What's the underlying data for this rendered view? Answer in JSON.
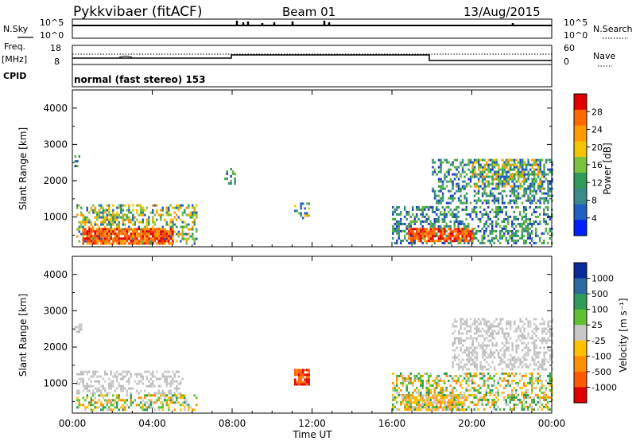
{
  "header": {
    "radar": "Pykkvibaer (fitACF)",
    "beam": "Beam 01",
    "date": "13/Aug/2015"
  },
  "noise_panel": {
    "left_label": "N.Sky",
    "right_label": "N.Search",
    "left_ticks": [
      "10^5",
      "10^0"
    ],
    "right_ticks": [
      "10^5",
      "10^0"
    ]
  },
  "freq_panel": {
    "left_label_top": "Freq.",
    "left_label_unit": "[MHz]",
    "cpid_label": "CPID",
    "right_label": "Nave",
    "left_ticks": [
      "18",
      "8"
    ],
    "right_ticks": [
      "60",
      "0"
    ],
    "cpid_text": "normal (fast stereo) 153"
  },
  "power_colorbar": {
    "label": "Power [dB]",
    "ticks": [
      "28",
      "24",
      "20",
      "16",
      "12",
      "8",
      "4"
    ],
    "colors": [
      "#e00000",
      "#ff6a00",
      "#ff9a00",
      "#f5c400",
      "#7cc242",
      "#2f9a5a",
      "#3a8a8a",
      "#2060c0",
      "#0020ff"
    ]
  },
  "velocity_colorbar": {
    "label": "Velocity [m s⁻¹]",
    "ticks": [
      "1000",
      "500",
      "100",
      "25",
      "-25",
      "-100",
      "-500",
      "-1000"
    ],
    "colors": [
      "#0a2a9a",
      "#2a6aa0",
      "#2f9a5a",
      "#60c030",
      "#c8c8c8",
      "#ffc000",
      "#ff9000",
      "#ff5a00",
      "#e00000"
    ]
  },
  "chart_data": [
    {
      "type": "heatmap",
      "name": "power",
      "ylabel": "Slant Range [km]",
      "y_ticks": [
        "4000",
        "3000",
        "2000",
        "1000"
      ],
      "ylim": [
        180,
        4500
      ],
      "xlim": [
        0,
        24
      ],
      "regions": [
        {
          "t0": 0.2,
          "t1": 6.2,
          "r0": 250,
          "r1": 1350,
          "level": "mid"
        },
        {
          "t0": 0.5,
          "t1": 5.0,
          "r0": 250,
          "r1": 700,
          "level": "high"
        },
        {
          "t0": 1.0,
          "t1": 2.6,
          "r0": 800,
          "r1": 1350,
          "level": "mid"
        },
        {
          "t0": 0.1,
          "t1": 0.4,
          "r0": 2400,
          "r1": 2700,
          "level": "low"
        },
        {
          "t0": 7.6,
          "t1": 8.1,
          "r0": 1950,
          "r1": 2350,
          "level": "low"
        },
        {
          "t0": 11.1,
          "t1": 11.8,
          "r0": 1000,
          "r1": 1400,
          "level": "mid"
        },
        {
          "t0": 16.0,
          "t1": 24.0,
          "r0": 250,
          "r1": 1300,
          "level": "low"
        },
        {
          "t0": 16.8,
          "t1": 20.0,
          "r0": 350,
          "r1": 700,
          "level": "high"
        },
        {
          "t0": 18.0,
          "t1": 24.0,
          "r0": 1400,
          "r1": 2600,
          "level": "low"
        },
        {
          "t0": 20.0,
          "t1": 23.5,
          "r0": 1800,
          "r1": 2600,
          "level": "mid"
        }
      ]
    },
    {
      "type": "heatmap",
      "name": "velocity",
      "ylabel": "Slant Range [km]",
      "y_ticks": [
        "4000",
        "3000",
        "2000",
        "1000"
      ],
      "ylim": [
        180,
        4500
      ],
      "xlim": [
        0,
        24
      ],
      "x_ticks": [
        "00:00",
        "04:00",
        "08:00",
        "12:00",
        "16:00",
        "20:00",
        "00:00"
      ],
      "xlabel": "Time UT",
      "regions": [
        {
          "t0": 0.2,
          "t1": 5.5,
          "r0": 700,
          "r1": 1350,
          "level": "gray"
        },
        {
          "t0": 0.2,
          "t1": 6.2,
          "r0": 250,
          "r1": 700,
          "level": "mixed"
        },
        {
          "t0": 11.1,
          "t1": 11.8,
          "r0": 1000,
          "r1": 1400,
          "level": "orange"
        },
        {
          "t0": 16.6,
          "t1": 19.6,
          "r0": 300,
          "r1": 700,
          "level": "yellow"
        },
        {
          "t0": 16.0,
          "t1": 24.0,
          "r0": 250,
          "r1": 1300,
          "level": "mixed"
        },
        {
          "t0": 19.0,
          "t1": 24.0,
          "r0": 1400,
          "r1": 2800,
          "level": "gray"
        },
        {
          "t0": 0.1,
          "t1": 0.4,
          "r0": 2450,
          "r1": 2650,
          "level": "gray"
        }
      ]
    }
  ]
}
